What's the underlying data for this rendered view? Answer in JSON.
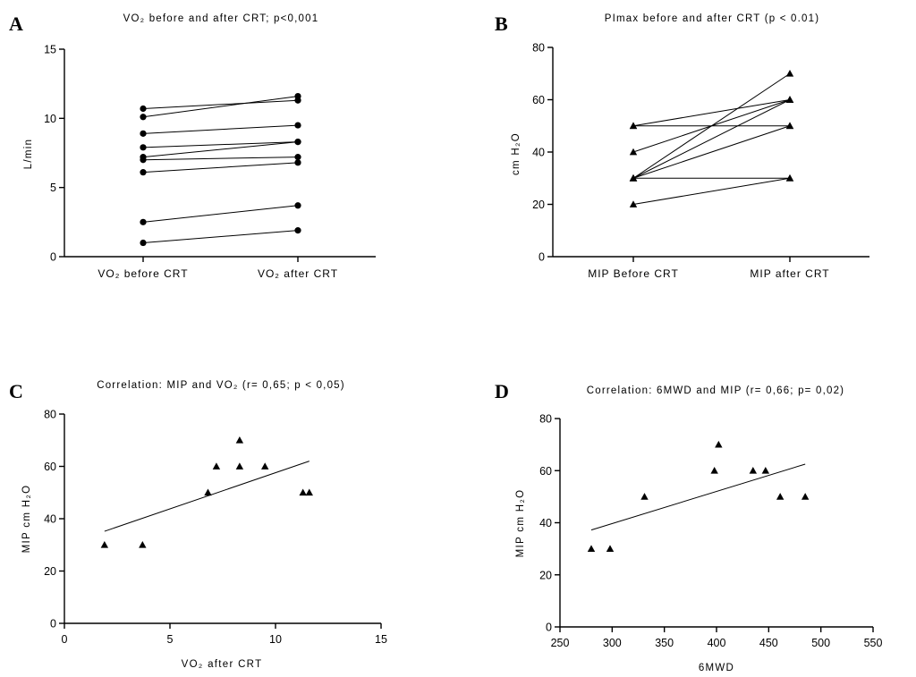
{
  "chart_data": [
    {
      "panel": "A",
      "type": "line",
      "title": "VO₂ before and after CRT; p<0,001",
      "ylabel": "L/min",
      "xlabel": "",
      "categories": [
        "VO₂ before CRT",
        "VO₂ after CRT"
      ],
      "ylim": [
        0,
        15
      ],
      "yticks": [
        0,
        5,
        10,
        15
      ],
      "marker": "circle",
      "pairs": [
        [
          10.7,
          11.3
        ],
        [
          10.1,
          11.6
        ],
        [
          8.9,
          9.5
        ],
        [
          7.9,
          8.3
        ],
        [
          7.2,
          8.3
        ],
        [
          7.0,
          7.2
        ],
        [
          6.1,
          6.8
        ],
        [
          2.5,
          3.7
        ],
        [
          1.0,
          1.9
        ]
      ]
    },
    {
      "panel": "B",
      "type": "line",
      "title": "PImax before and after CRT (p < 0.01)",
      "ylabel": "cm H₂O",
      "xlabel": "",
      "categories": [
        "MIP Before CRT",
        "MIP after CRT"
      ],
      "ylim": [
        0,
        80
      ],
      "yticks": [
        0,
        20,
        40,
        60,
        80
      ],
      "marker": "triangle",
      "pairs": [
        [
          50,
          50
        ],
        [
          50,
          60
        ],
        [
          40,
          60
        ],
        [
          30,
          70
        ],
        [
          30,
          60
        ],
        [
          30,
          50
        ],
        [
          30,
          30
        ],
        [
          20,
          30
        ]
      ]
    },
    {
      "panel": "C",
      "type": "scatter",
      "title": "Correlation: MIP and VO₂ (r= 0,65; p < 0,05)",
      "xlabel": "VO₂ after CRT",
      "ylabel": "MIP cm H₂O",
      "xlim": [
        0,
        15
      ],
      "ylim": [
        0,
        80
      ],
      "xticks": [
        0,
        5,
        10,
        15
      ],
      "yticks": [
        0,
        20,
        40,
        60,
        80
      ],
      "marker": "triangle",
      "points": [
        [
          1.9,
          30
        ],
        [
          3.7,
          30
        ],
        [
          6.8,
          50
        ],
        [
          7.2,
          60
        ],
        [
          8.3,
          60
        ],
        [
          8.3,
          70
        ],
        [
          9.5,
          60
        ],
        [
          11.3,
          50
        ],
        [
          11.6,
          50
        ]
      ],
      "fit": {
        "x": [
          1.9,
          11.6
        ],
        "y": [
          35.2,
          62.0
        ]
      }
    },
    {
      "panel": "D",
      "type": "scatter",
      "title": "Correlation: 6MWD and MIP (r= 0,66; p= 0,02)",
      "xlabel": "6MWD",
      "ylabel": "MIP cm H₂O",
      "xlim": [
        250,
        550
      ],
      "ylim": [
        0,
        80
      ],
      "xticks": [
        250,
        300,
        350,
        400,
        450,
        500,
        550
      ],
      "yticks": [
        0,
        20,
        40,
        60,
        80
      ],
      "marker": "triangle",
      "points": [
        [
          280,
          30
        ],
        [
          298,
          30
        ],
        [
          331,
          50
        ],
        [
          398,
          60
        ],
        [
          402,
          70
        ],
        [
          435,
          60
        ],
        [
          447,
          60
        ],
        [
          461,
          50
        ],
        [
          485,
          50
        ]
      ],
      "fit": {
        "x": [
          280,
          485
        ],
        "y": [
          37.2,
          62.5
        ]
      }
    }
  ]
}
